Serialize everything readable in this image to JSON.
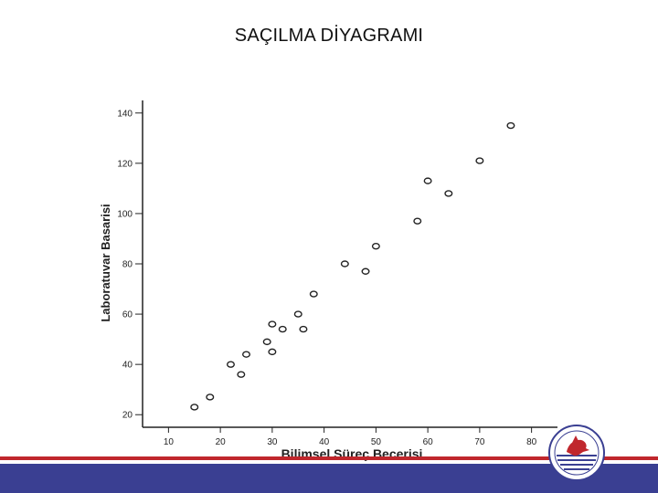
{
  "slide": {
    "title": "SAÇILMA DİYAGRAMI"
  },
  "colors": {
    "footer_band": "#3a3f92",
    "footer_stripe": "#c0272d",
    "axis": "#222222"
  },
  "logo": {
    "name": "university-seal-icon"
  },
  "chart_data": {
    "type": "scatter",
    "xlabel": "Bilimsel Süreç Becerisi",
    "ylabel": "Laboratuvar Basarisi",
    "xlim": [
      5,
      85
    ],
    "ylim": [
      15,
      145
    ],
    "x_ticks": [
      10,
      20,
      30,
      40,
      50,
      60,
      70,
      80
    ],
    "y_ticks": [
      20,
      40,
      60,
      80,
      100,
      120,
      140
    ],
    "grid": false,
    "marker": "circle-open",
    "points": [
      {
        "x": 15,
        "y": 23
      },
      {
        "x": 18,
        "y": 27
      },
      {
        "x": 22,
        "y": 40
      },
      {
        "x": 24,
        "y": 36
      },
      {
        "x": 25,
        "y": 44
      },
      {
        "x": 29,
        "y": 49
      },
      {
        "x": 30,
        "y": 45
      },
      {
        "x": 30,
        "y": 56
      },
      {
        "x": 32,
        "y": 54
      },
      {
        "x": 35,
        "y": 60
      },
      {
        "x": 36,
        "y": 54
      },
      {
        "x": 38,
        "y": 68
      },
      {
        "x": 44,
        "y": 80
      },
      {
        "x": 48,
        "y": 77
      },
      {
        "x": 50,
        "y": 87
      },
      {
        "x": 58,
        "y": 97
      },
      {
        "x": 60,
        "y": 113
      },
      {
        "x": 64,
        "y": 108
      },
      {
        "x": 70,
        "y": 121
      },
      {
        "x": 76,
        "y": 135
      }
    ]
  }
}
